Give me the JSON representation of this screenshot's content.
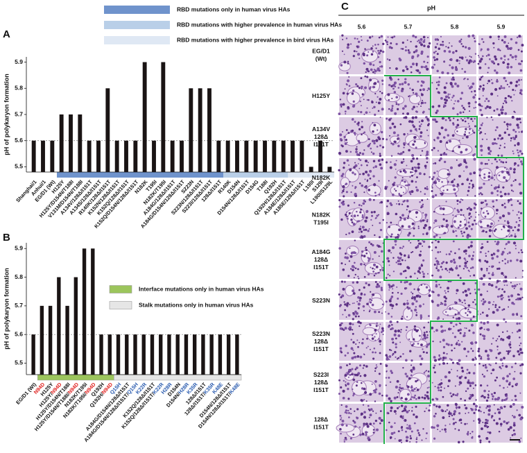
{
  "chart_data": [
    {
      "type": "bar",
      "label": "A",
      "ylabel": "pH of polykaryon formation",
      "categories": [
        "Shanghai/1",
        "Anhui/1",
        "EG/D1 (Wt)",
        "H125Y",
        "H125Y/D154N/T188I",
        "V131M/D154N/T188I",
        "A134V/128Δ/I151T",
        "A134S/128Δ/I151T",
        "R140K/128Δ/I151T",
        "K152N/128Δ/I151T",
        "K152Q/128Δ/I151T",
        "K152Q/D154N/128Δ/I151T",
        "N182K",
        "T195I",
        "N182K/T195I",
        "A184G/128Δ/I151T",
        "A184G/D154N/128Δ/I151T",
        "S223N",
        "S223N/128Δ/I151T",
        "S223I/128Δ/I151T",
        "128Δ/I151T",
        "R140K",
        "D154N",
        "D154N/128Δ/I151T",
        "D154G",
        "T188I",
        "Q192H",
        "Q192H/128Δ/I151T",
        "A184E/128Δ/I151T",
        "A185E/128Δ/I151T",
        "L190I",
        "S129I",
        "L190I/S129L"
      ],
      "values": [
        5.6,
        5.6,
        5.6,
        5.7,
        5.7,
        5.7,
        5.6,
        5.6,
        5.8,
        5.6,
        5.6,
        5.6,
        5.9,
        5.6,
        5.9,
        5.6,
        5.6,
        5.8,
        5.8,
        5.8,
        5.6,
        5.6,
        5.6,
        5.6,
        5.6,
        5.6,
        5.6,
        5.6,
        5.6,
        5.6,
        5.5,
        5.6,
        5.5
      ],
      "color": "#1a1414",
      "ylim": [
        5.48,
        5.92
      ],
      "yticks": [
        5.5,
        5.6,
        5.7,
        5.8,
        5.9
      ],
      "ref_line": 5.6,
      "groups": [
        {
          "name": "RBD mutations only in human virus HAs",
          "color": "#6f93cc",
          "start": 3,
          "end": 20
        },
        {
          "name": "RBD mutations with higher prevalence in human virus HAs",
          "color": "#b9cfe8",
          "start": 21,
          "end": 27
        },
        {
          "name": "RBD mutations with higher prevalence in bird virus HAs",
          "color": "#dfe8f4",
          "start": 28,
          "end": 32
        }
      ]
    },
    {
      "type": "bar",
      "label": "B",
      "ylabel": "pH of polykaryon formation",
      "categories": [
        "EG/D1 (Wt)",
        "N94D",
        "H125Y",
        "H125Y/N94D",
        "H125Y/D154N/T188I",
        "H125Y/D154N/T188I/N94D",
        "N182K/T195I",
        "N182K/T195I/N94D",
        "Q192H",
        "Q192H/N94D",
        "Q15H",
        "A184G/D154N/128Δ/I151T",
        "A184G/D154N/128Δ/I151T/Q15H",
        "K22R",
        "K152Q/128Δ/I151T",
        "K152Q/128Δ/I151T/K22R",
        "H28R",
        "D154N",
        "D154N/H28R",
        "K35R",
        "128Δ/I151T",
        "128Δ/I151T/K35R",
        "K48E",
        "D154N/128Δ/I151T",
        "D154N/128Δ/I151T/K48E"
      ],
      "values": [
        5.6,
        5.7,
        5.7,
        5.8,
        5.7,
        5.8,
        5.9,
        5.9,
        5.6,
        5.6,
        5.6,
        5.6,
        5.6,
        5.6,
        5.6,
        5.6,
        5.6,
        5.6,
        5.6,
        5.6,
        5.6,
        5.6,
        5.6,
        5.6,
        5.6
      ],
      "mutation_colors": [
        null,
        "#e0201e",
        null,
        "#e0201e",
        null,
        "#e0201e",
        null,
        "#e0201e",
        null,
        "#e0201e",
        "#2c5db0",
        null,
        "#2c5db0",
        "#2c5db0",
        null,
        "#2c5db0",
        "#2c5db0",
        null,
        "#2c5db0",
        "#2c5db0",
        null,
        "#2c5db0",
        "#2c5db0",
        null,
        "#2c5db0"
      ],
      "color": "#1a1414",
      "ylim": [
        5.46,
        5.92
      ],
      "yticks": [
        5.5,
        5.6,
        5.7,
        5.8,
        5.9
      ],
      "ref_line": 5.6,
      "groups": [
        {
          "name": "Interface mutations only in human virus HAs",
          "color": "#9cc55c",
          "start": 1,
          "end": 9
        },
        {
          "name": "Stalk mutations only in human virus HAs",
          "color": "#e6e6e6",
          "start": 10,
          "end": 24
        }
      ]
    }
  ],
  "panel_c": {
    "label": "C",
    "title": "pH",
    "columns": [
      5.6,
      5.7,
      5.8,
      5.9
    ],
    "rows": [
      [
        "EG/D1",
        "(Wt)"
      ],
      [
        "H125Y"
      ],
      [
        "A134V",
        "128Δ",
        "I151T"
      ],
      [
        "N182K"
      ],
      [
        "N182K",
        "T195I"
      ],
      [
        "A184G",
        "128Δ",
        "I151T"
      ],
      [
        "S223N"
      ],
      [
        "S223N",
        "128Δ",
        "I151T"
      ],
      [
        "S223I",
        "128Δ",
        "I151T"
      ],
      [
        "128Δ",
        "I151T"
      ]
    ],
    "fused_columns": [
      1,
      2,
      3,
      4,
      4,
      1,
      3,
      2,
      2,
      1
    ],
    "boundary_color": "#22b04a"
  }
}
